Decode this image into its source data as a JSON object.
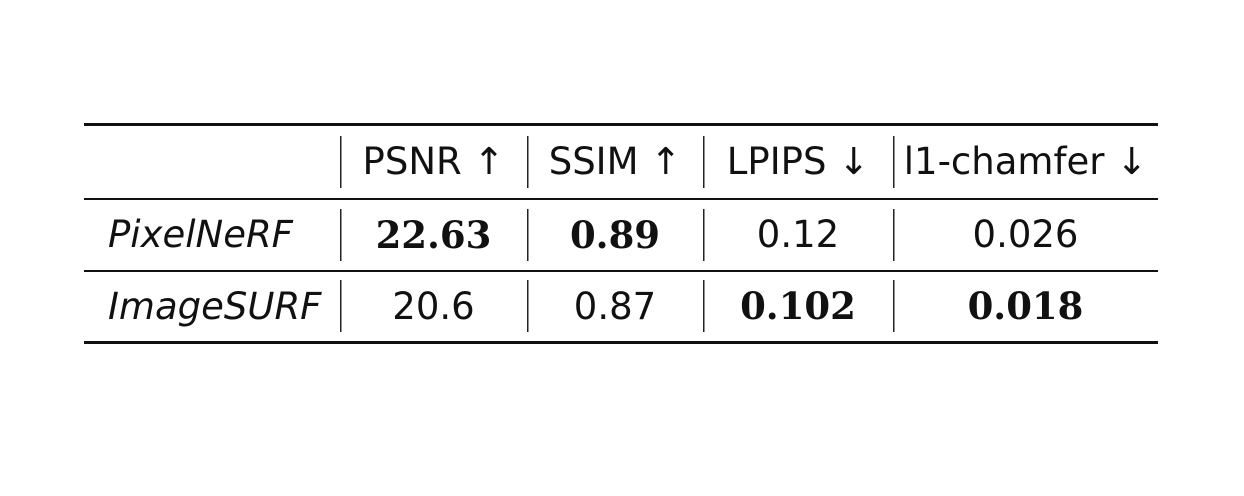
{
  "table": {
    "headers": [
      "",
      "PSNR ↑",
      "SSIM ↑",
      "LPIPS ↓",
      "l1-chamfer ↓"
    ],
    "rows": [
      {
        "method": "PixelNeRF",
        "psnr": "22.63",
        "ssim": "0.89",
        "lpips": "0.12",
        "chamfer": "0.026"
      },
      {
        "method": "ImageSURF",
        "psnr": "20.6",
        "ssim": "0.87",
        "lpips": "0.102",
        "chamfer": "0.018"
      }
    ],
    "bold_cells": [
      [
        "PixelNeRF",
        "psnr"
      ],
      [
        "PixelNeRF",
        "ssim"
      ],
      [
        "ImageSURF",
        "lpips"
      ],
      [
        "ImageSURF",
        "chamfer"
      ]
    ]
  }
}
